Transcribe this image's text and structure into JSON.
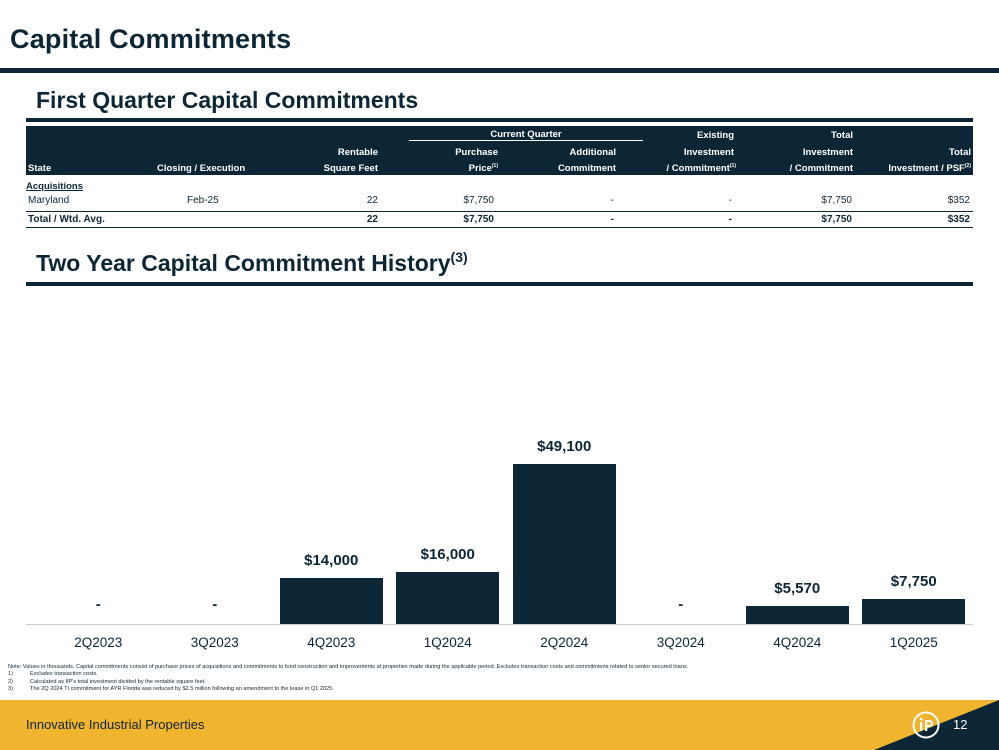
{
  "page": {
    "title": "Capital Commitments",
    "section1_title": "First Quarter Capital Commitments",
    "section2_title": "Two Year Capital Commitment History",
    "section2_sup": "(3)"
  },
  "table": {
    "group_header": "Current Quarter",
    "headers": {
      "state": "State",
      "closing": "Closing / Execution",
      "rentable_1": "Rentable",
      "rentable_2": "Square Feet",
      "purchase_1": "Purchase",
      "purchase_2": "Price",
      "purchase_sup": "(1)",
      "additional_1": "Additional",
      "additional_2": "Commitment",
      "existing_1": "Existing",
      "existing_2": "Investment",
      "existing_3": "/ Commitment",
      "existing_sup": "(1)",
      "totalinv_1": "Total",
      "totalinv_2": "Investment",
      "totalinv_3": "/ Commitment",
      "psf_1": "Total",
      "psf_2": "Investment / PSF",
      "psf_sup": "(2)"
    },
    "section_label": "Acquisitions",
    "rows": [
      {
        "state": "Maryland",
        "closing": "Feb-25",
        "sqft": "22",
        "purchase": "$7,750",
        "additional": "-",
        "existing": "-",
        "total": "$7,750",
        "psf": "$352"
      }
    ],
    "total_row": {
      "label": "Total / Wtd. Avg.",
      "sqft": "22",
      "purchase": "$7,750",
      "additional": "-",
      "existing": "-",
      "total": "$7,750",
      "psf": "$352"
    }
  },
  "chart_data": {
    "type": "bar",
    "title": "Two Year Capital Commitment History",
    "categories": [
      "2Q2023",
      "3Q2023",
      "4Q2023",
      "1Q2024",
      "2Q2024",
      "3Q2024",
      "4Q2024",
      "1Q2025"
    ],
    "values": [
      0,
      0,
      14000,
      16000,
      49100,
      0,
      5570,
      7750
    ],
    "data_labels": [
      "-",
      "-",
      "$14,000",
      "$16,000",
      "$49,100",
      "-",
      "$5,570",
      "$7,750"
    ],
    "xlabel": "",
    "ylabel": "",
    "ylim": [
      0,
      49100
    ],
    "units": "thousands of dollars",
    "colors": {
      "bar": "#0d2636"
    }
  },
  "notes": {
    "main": "Note: Values in thousands. Capital commitments consist of purchase prices of acquisitions and commitments to fund construction and improvements at properties made during the applicable period. Excludes transaction costs and commitments related to senior secured loans.",
    "footnotes": [
      {
        "num": "1)",
        "text": "Excludes transaction costs."
      },
      {
        "num": "2)",
        "text": "Calculated as IIP's total investment divided by the rentable square feet."
      },
      {
        "num": "3)",
        "text": "The 2Q 2024 TI commitment for AYR Florida was reduced by $2.5 million following an amendment to the lease in Q1 2025."
      }
    ]
  },
  "footer": {
    "company": "Innovative Industrial Properties",
    "page_number": "12",
    "logo_icon": "iip-logo-icon"
  },
  "colors": {
    "navy": "#0d2636",
    "gold": "#f1b42f"
  }
}
